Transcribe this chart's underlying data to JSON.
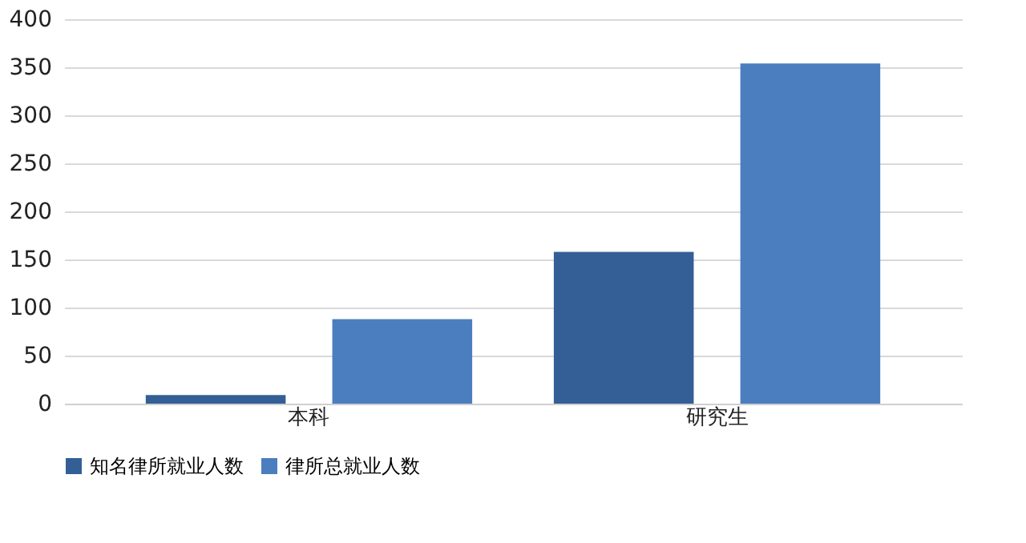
{
  "chart_data": {
    "type": "bar",
    "categories": [
      "本科",
      "研究生"
    ],
    "series": [
      {
        "name": "知名律所就业人数",
        "color": "#335f96",
        "values": [
          9,
          158
        ]
      },
      {
        "name": "律所总就业人数",
        "color": "#4a7ebf",
        "values": [
          88,
          354
        ]
      }
    ],
    "ylim": [
      0,
      400
    ],
    "yticks": [
      0,
      50,
      100,
      150,
      200,
      250,
      300,
      350,
      400
    ],
    "grid": "y",
    "legend": "bottom"
  }
}
